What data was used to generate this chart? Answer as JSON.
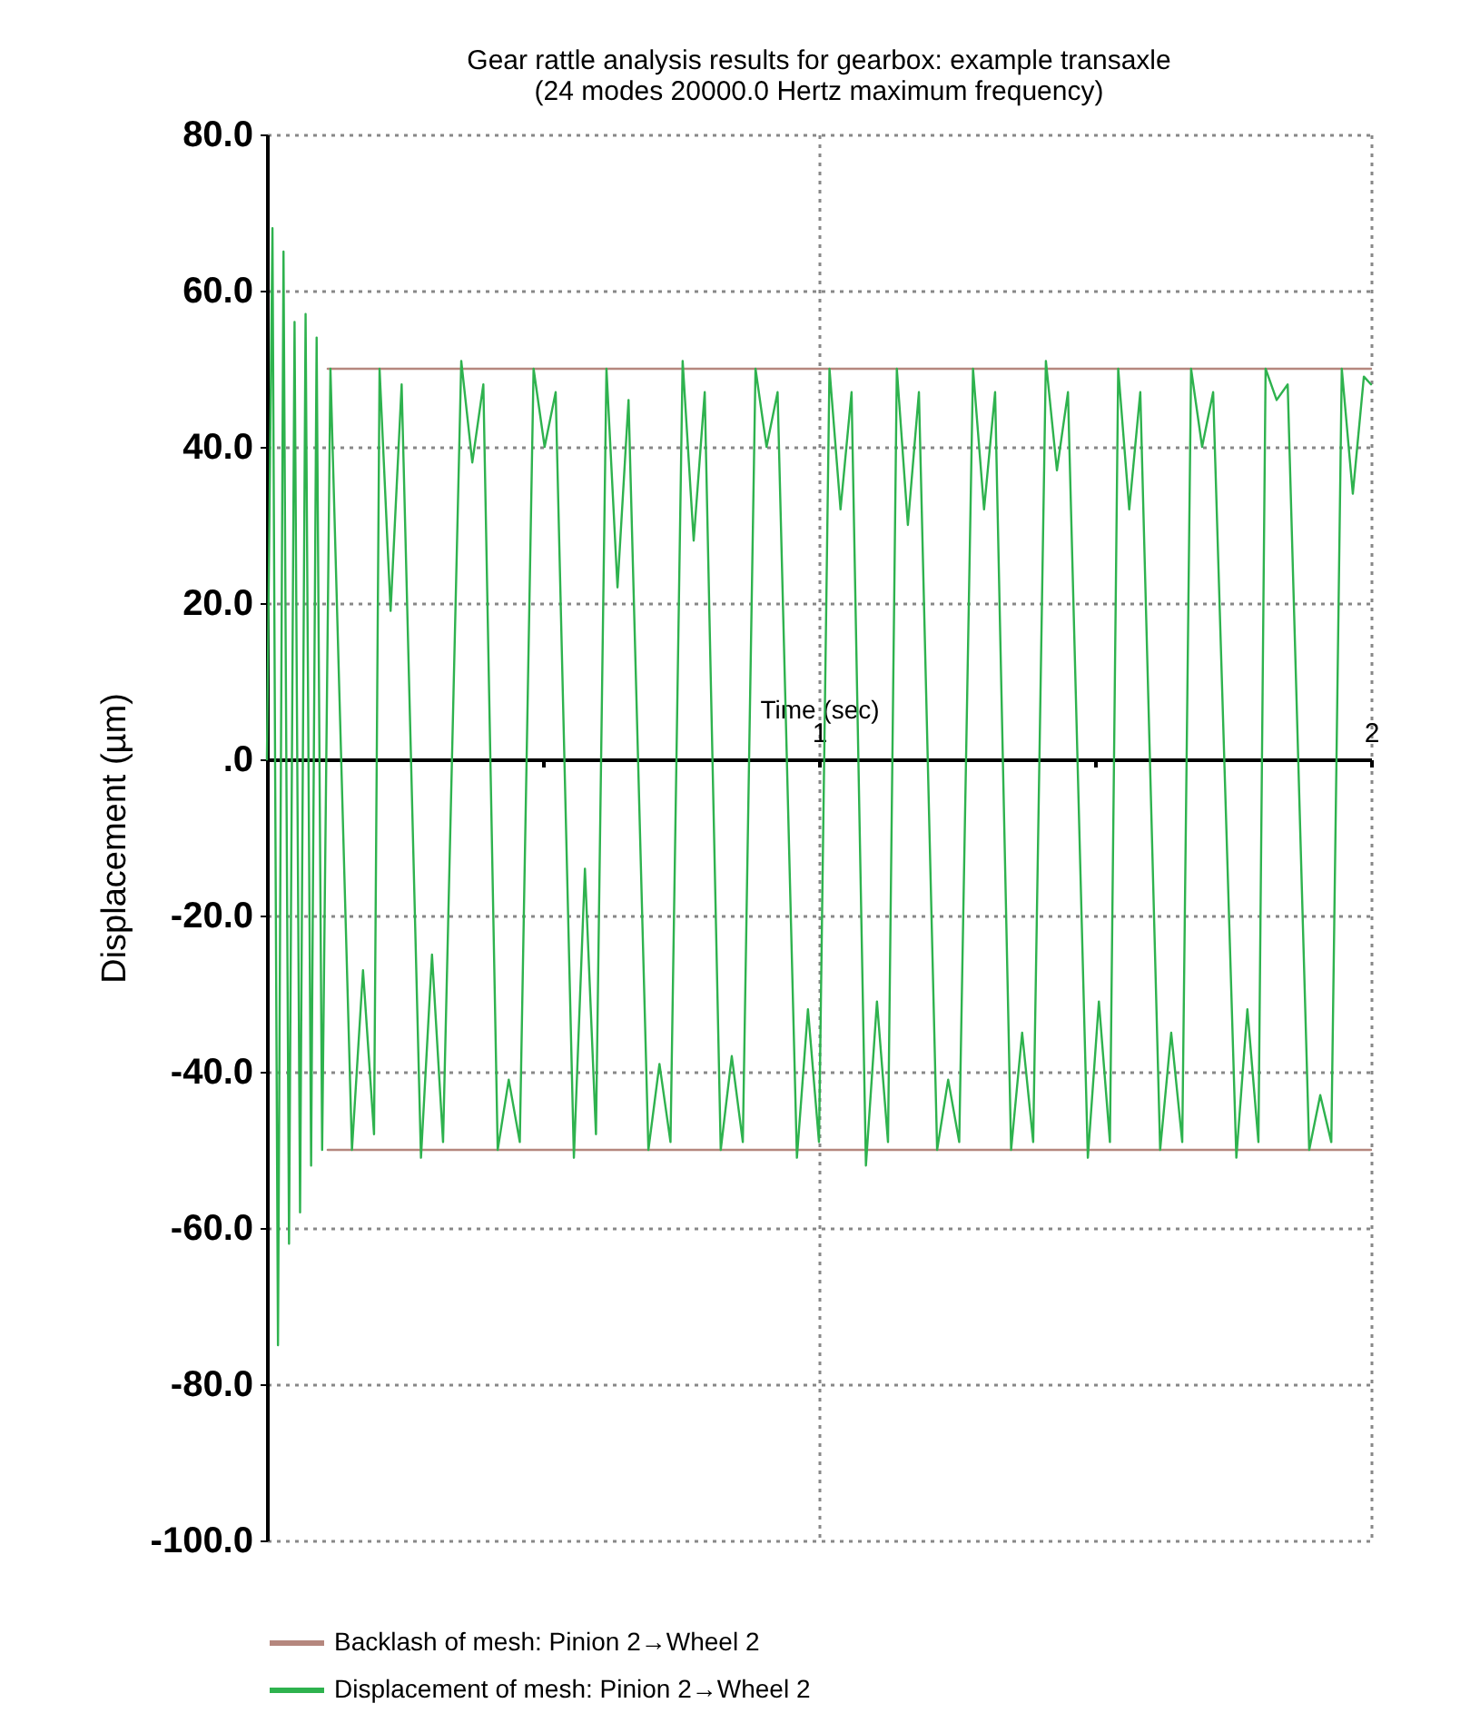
{
  "chart_data": {
    "type": "line",
    "title": "Gear rattle analysis results for gearbox:  example transaxle",
    "subtitle": "(24 modes 20000.0 Hertz maximum frequency)",
    "xlabel": "Time (sec)",
    "ylabel": "Displacement (µm)",
    "xlim": [
      0,
      2
    ],
    "xticks": [
      {
        "value": 0.5,
        "label": null
      },
      1,
      {
        "value": 1.5,
        "label": null
      },
      2
    ],
    "ylim": [
      -100,
      80
    ],
    "yticks": [
      {
        "value": -100,
        "label": "-100.0"
      },
      {
        "value": -80,
        "label": "-80.0"
      },
      {
        "value": -60,
        "label": "-60.0"
      },
      {
        "value": -40,
        "label": "-40.0"
      },
      {
        "value": -20,
        "label": "-20.0"
      },
      {
        "value": 0,
        "label": ".0"
      },
      {
        "value": 20,
        "label": "20.0"
      },
      {
        "value": 40,
        "label": "40.0"
      },
      {
        "value": 60,
        "label": "60.0"
      },
      {
        "value": 80,
        "label": "80.0"
      }
    ],
    "grid": true,
    "legend": "bottom",
    "series": [
      {
        "name": "Backlash of mesh: Pinion 2→Wheel 2",
        "color": "#b5877e",
        "x": [
          0.11,
          2
        ],
        "values": [
          50,
          50
        ]
      },
      {
        "color": "#b5877e",
        "x": [
          0.11,
          2
        ],
        "values": [
          -50,
          -50
        ]
      },
      {
        "name": "Displacement of mesh: Pinion 2→Wheel 2",
        "color": "#2eb24e",
        "x": [
          0,
          0.01,
          0.02,
          0.03,
          0.04,
          0.05,
          0.06,
          0.07,
          0.08,
          0.09,
          0.1,
          0.115,
          0.154,
          0.174,
          0.194,
          0.204,
          0.224,
          0.244,
          0.279,
          0.299,
          0.319,
          0.352,
          0.372,
          0.392,
          0.418,
          0.438,
          0.458,
          0.483,
          0.503,
          0.523,
          0.556,
          0.576,
          0.596,
          0.615,
          0.635,
          0.655,
          0.691,
          0.711,
          0.731,
          0.753,
          0.773,
          0.793,
          0.822,
          0.842,
          0.862,
          0.885,
          0.905,
          0.925,
          0.96,
          0.98,
          1.0,
          1.019,
          1.039,
          1.059,
          1.085,
          1.105,
          1.125,
          1.141,
          1.161,
          1.181,
          1.214,
          1.234,
          1.254,
          1.279,
          1.299,
          1.319,
          1.348,
          1.368,
          1.388,
          1.411,
          1.431,
          1.451,
          1.487,
          1.507,
          1.527,
          1.542,
          1.562,
          1.582,
          1.618,
          1.638,
          1.658,
          1.674,
          1.694,
          1.714,
          1.756,
          1.776,
          1.796,
          1.809,
          1.829,
          1.849,
          1.888,
          1.908,
          1.928,
          1.947,
          1.967,
          1.987,
          2.0
        ],
        "values": [
          0,
          68,
          -75,
          65,
          -62,
          56,
          -58,
          57,
          -52,
          54,
          -50,
          50,
          -50,
          -27,
          -48,
          50,
          19,
          48,
          -51,
          -25,
          -49,
          51,
          38,
          48,
          -50,
          -41,
          -49,
          50,
          40,
          47,
          -51,
          -14,
          -48,
          50,
          22,
          46,
          -50,
          -39,
          -49,
          51,
          28,
          47,
          -50,
          -38,
          -49,
          50,
          40,
          47,
          -51,
          -32,
          -49,
          50,
          32,
          47,
          -52,
          -31,
          -49,
          50,
          30,
          47,
          -50,
          -41,
          -49,
          50,
          32,
          47,
          -50,
          -35,
          -49,
          51,
          37,
          47,
          -51,
          -31,
          -49,
          50,
          32,
          47,
          -50,
          -35,
          -49,
          50,
          40,
          47,
          -51,
          -32,
          -49,
          50,
          46,
          48,
          -50,
          -43,
          -49,
          50,
          34,
          49,
          48
        ]
      }
    ]
  }
}
